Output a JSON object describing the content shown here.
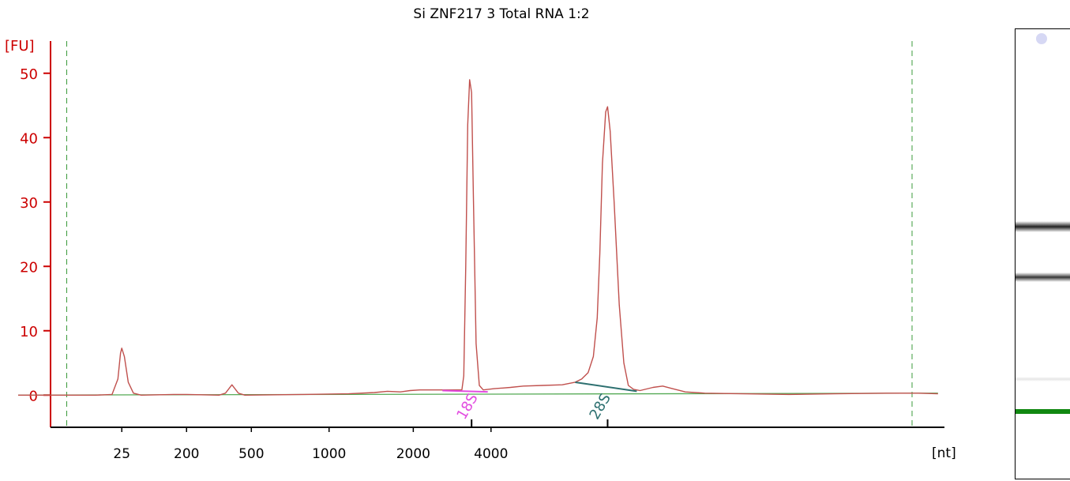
{
  "chart_data": {
    "type": "line",
    "title": "Si ZNF217 3 Total RNA 1:2",
    "ylabel": "[FU]",
    "xlabel": "[nt]",
    "ylim": [
      -5,
      55
    ],
    "yticks": [
      0,
      10,
      20,
      30,
      40,
      50
    ],
    "xticks": [
      {
        "label": "25",
        "pos": 0.0
      },
      {
        "label": "200",
        "pos": 1.0
      },
      {
        "label": "500",
        "pos": 2.0
      },
      {
        "label": "1000",
        "pos": 3.2
      },
      {
        "label": "2000",
        "pos": 4.5
      },
      {
        "label": "4000",
        "pos": 5.7
      }
    ],
    "xrange": [
      -1.1,
      12.7
    ],
    "marker_lines": [
      -0.85,
      12.2
    ],
    "major_ticks": [
      5.4,
      7.5
    ],
    "series": [
      {
        "points": [
          [
            -1.6,
            0.0
          ],
          [
            -0.4,
            0.0
          ],
          [
            -0.15,
            0.1
          ],
          [
            -0.06,
            2.5
          ],
          [
            -0.02,
            6.5
          ],
          [
            0.0,
            7.3
          ],
          [
            0.04,
            6.0
          ],
          [
            0.1,
            2.0
          ],
          [
            0.18,
            0.3
          ],
          [
            0.3,
            0.0
          ],
          [
            0.8,
            0.1
          ],
          [
            1.0,
            0.1
          ],
          [
            1.5,
            0.0
          ],
          [
            1.6,
            0.3
          ],
          [
            1.7,
            1.6
          ],
          [
            1.8,
            0.3
          ],
          [
            1.9,
            0.0
          ],
          [
            2.8,
            0.1
          ],
          [
            3.5,
            0.2
          ],
          [
            3.9,
            0.4
          ],
          [
            4.1,
            0.6
          ],
          [
            4.3,
            0.5
          ],
          [
            4.45,
            0.7
          ],
          [
            4.6,
            0.8
          ],
          [
            4.9,
            0.8
          ],
          [
            5.25,
            0.8
          ],
          [
            5.28,
            3.0
          ],
          [
            5.31,
            20.0
          ],
          [
            5.34,
            42.0
          ],
          [
            5.37,
            49.0
          ],
          [
            5.4,
            47.0
          ],
          [
            5.43,
            30.0
          ],
          [
            5.47,
            8.0
          ],
          [
            5.52,
            1.5
          ],
          [
            5.58,
            0.8
          ],
          [
            5.75,
            1.0
          ],
          [
            6.0,
            1.2
          ],
          [
            6.2,
            1.4
          ],
          [
            6.5,
            1.5
          ],
          [
            6.8,
            1.6
          ],
          [
            7.0,
            2.0
          ],
          [
            7.1,
            2.5
          ],
          [
            7.2,
            3.5
          ],
          [
            7.28,
            6.0
          ],
          [
            7.34,
            12.0
          ],
          [
            7.38,
            22.0
          ],
          [
            7.42,
            36.0
          ],
          [
            7.47,
            44.0
          ],
          [
            7.5,
            44.8
          ],
          [
            7.54,
            41.0
          ],
          [
            7.6,
            30.0
          ],
          [
            7.68,
            14.0
          ],
          [
            7.75,
            5.0
          ],
          [
            7.82,
            1.5
          ],
          [
            7.9,
            0.9
          ],
          [
            8.0,
            0.7
          ],
          [
            8.2,
            1.2
          ],
          [
            8.35,
            1.4
          ],
          [
            8.5,
            1.0
          ],
          [
            8.7,
            0.5
          ],
          [
            9.0,
            0.3
          ],
          [
            9.6,
            0.2
          ],
          [
            10.3,
            0.1
          ],
          [
            11.0,
            0.2
          ],
          [
            11.8,
            0.3
          ],
          [
            12.3,
            0.3
          ],
          [
            12.6,
            0.2
          ]
        ]
      }
    ],
    "annotations": [
      {
        "label": "18S",
        "x": 5.5,
        "color": "#e24ce0",
        "baseline": [
          [
            4.95,
            0.7
          ],
          [
            5.65,
            0.5
          ]
        ]
      },
      {
        "label": "28S",
        "x": 7.55,
        "color": "#2d7070",
        "baseline": [
          [
            7.0,
            2.0
          ],
          [
            7.95,
            0.6
          ]
        ]
      }
    ],
    "colors": {
      "trace": "#c0504d",
      "yaxis": "#cc0000",
      "baseline": "#55aa55",
      "marker": "#3a9a3a",
      "axis": "#000000"
    }
  }
}
